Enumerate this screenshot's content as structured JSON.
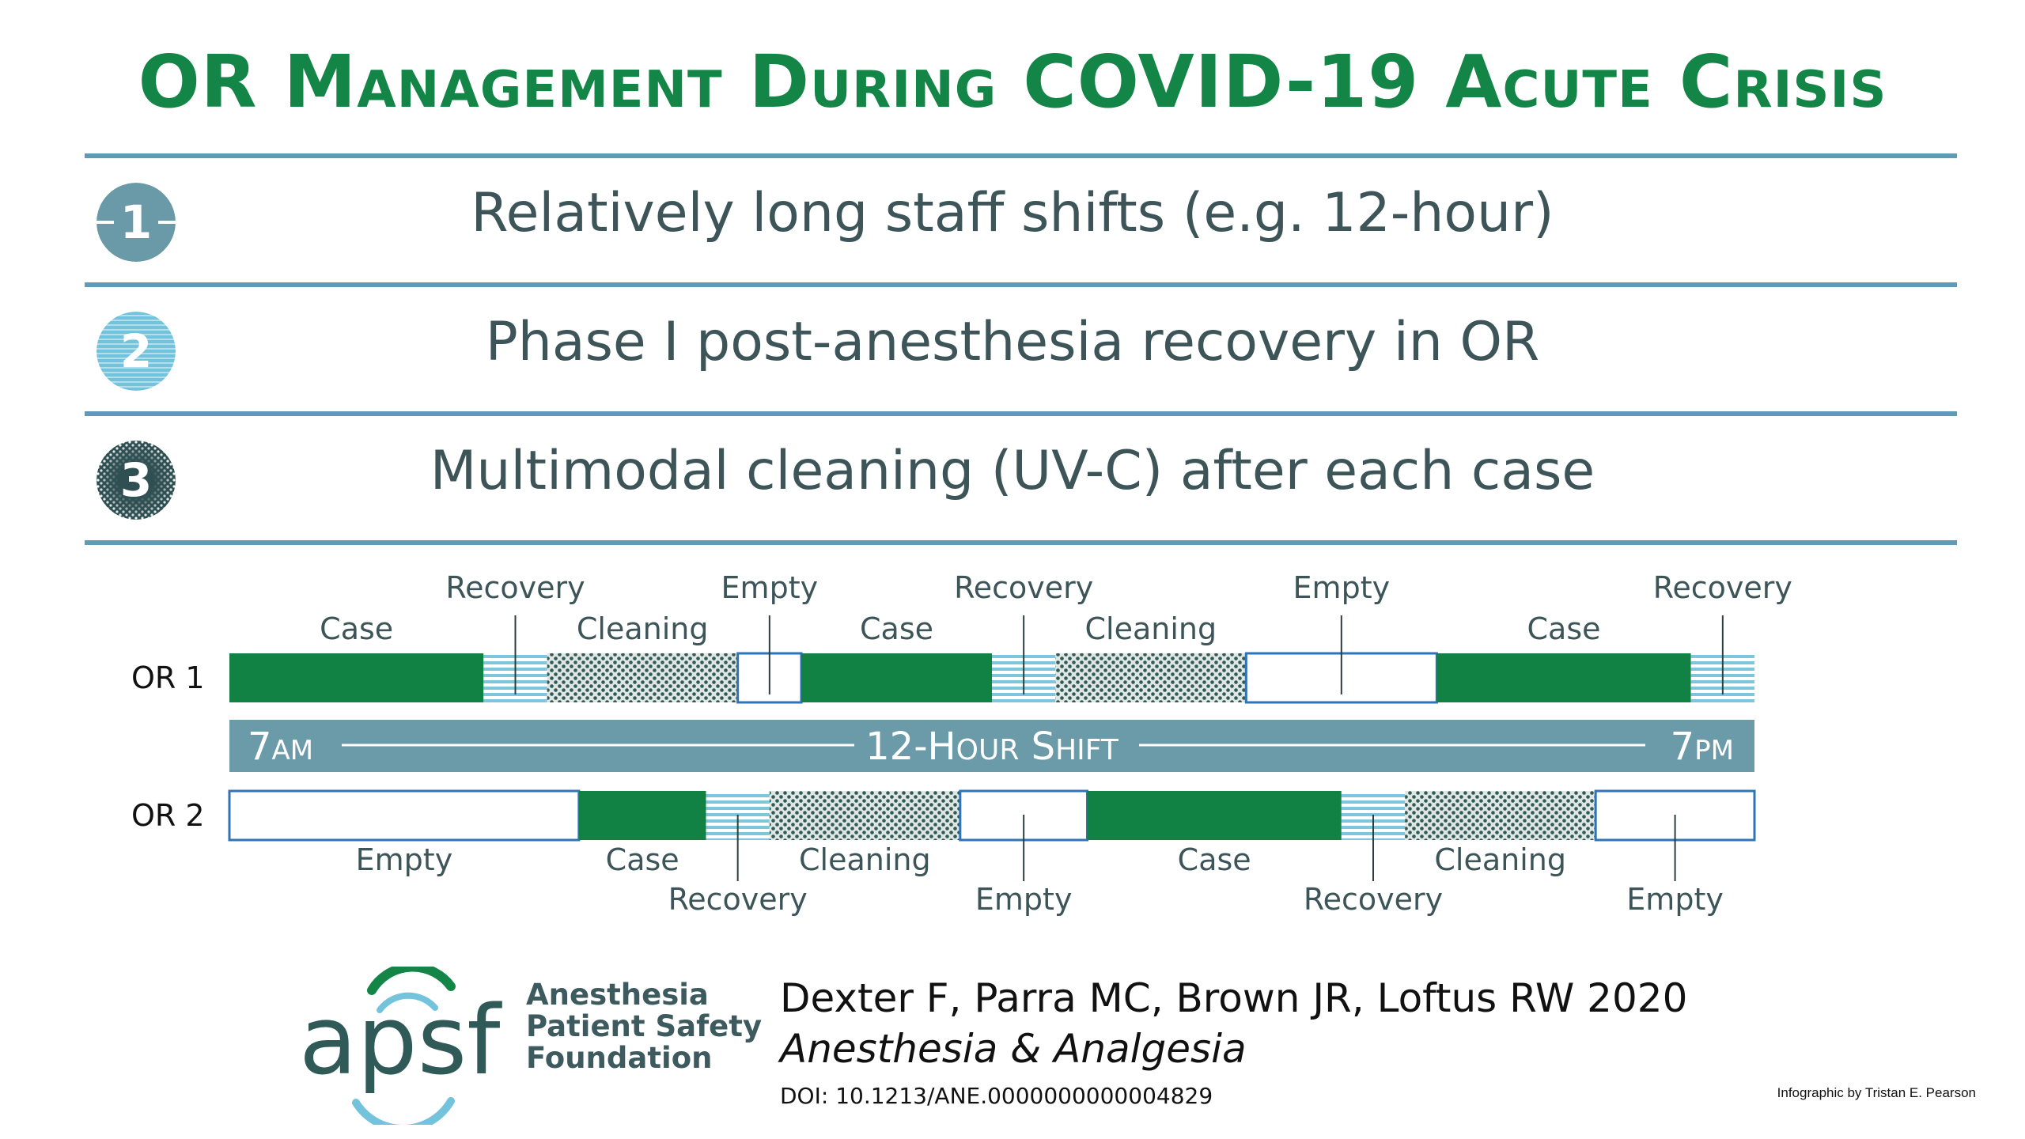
{
  "title": "OR Management During COVID-19 Acute Crisis",
  "items": [
    {
      "number": "1",
      "text": "Relatively long staff shifts (e.g. 12-hour)",
      "icon": "solid-circle-icon",
      "color": "#6a99a8"
    },
    {
      "number": "2",
      "text": "Phase I post-anesthesia recovery in OR",
      "icon": "striped-circle-icon",
      "color": "#74c3dc"
    },
    {
      "number": "3",
      "text": "Multimodal cleaning (UV-C) after each case",
      "icon": "dotted-circle-icon",
      "color": "#2f4f52"
    }
  ],
  "schedule": {
    "rows": [
      {
        "label": "OR 1",
        "blocks": [
          {
            "type": "Case",
            "hours": 2
          },
          {
            "type": "Recovery",
            "hours": 0.5
          },
          {
            "type": "Cleaning",
            "hours": 1.5
          },
          {
            "type": "Empty",
            "hours": 0.5
          },
          {
            "type": "Case",
            "hours": 1.5
          },
          {
            "type": "Recovery",
            "hours": 0.5
          },
          {
            "type": "Cleaning",
            "hours": 1.5
          },
          {
            "type": "Empty",
            "hours": 1.5
          },
          {
            "type": "Case",
            "hours": 2
          },
          {
            "type": "Recovery",
            "hours": 0.5
          }
        ]
      },
      {
        "label": "OR 2",
        "blocks": [
          {
            "type": "Empty",
            "hours": 2.75
          },
          {
            "type": "Case",
            "hours": 1
          },
          {
            "type": "Recovery",
            "hours": 0.5
          },
          {
            "type": "Cleaning",
            "hours": 1.5
          },
          {
            "type": "Empty",
            "hours": 1
          },
          {
            "type": "Case",
            "hours": 2
          },
          {
            "type": "Recovery",
            "hours": 0.5
          },
          {
            "type": "Cleaning",
            "hours": 1.5
          },
          {
            "type": "Empty",
            "hours": 1.25
          }
        ]
      }
    ],
    "shift": {
      "start": "7AM",
      "label": "12-Hour Shift",
      "end": "7PM"
    },
    "colors": {
      "case": "#118144",
      "recovery": "#7fc5de",
      "cleaning": "#2f5a55",
      "empty": "#ffffff",
      "outline": "#2f74b8",
      "shift_bar": "#6b9aa8"
    }
  },
  "footer": {
    "logo_text": "apsf",
    "org_lines": [
      "Anesthesia",
      "Patient Safety",
      "Foundation"
    ],
    "authors": "Dexter F, Parra MC, Brown JR, Loftus RW 2020",
    "journal": "Anesthesia & Analgesia",
    "doi": "DOI: 10.1213/ANE.0000000000004829",
    "credit": "Infographic by Tristan E. Pearson"
  }
}
